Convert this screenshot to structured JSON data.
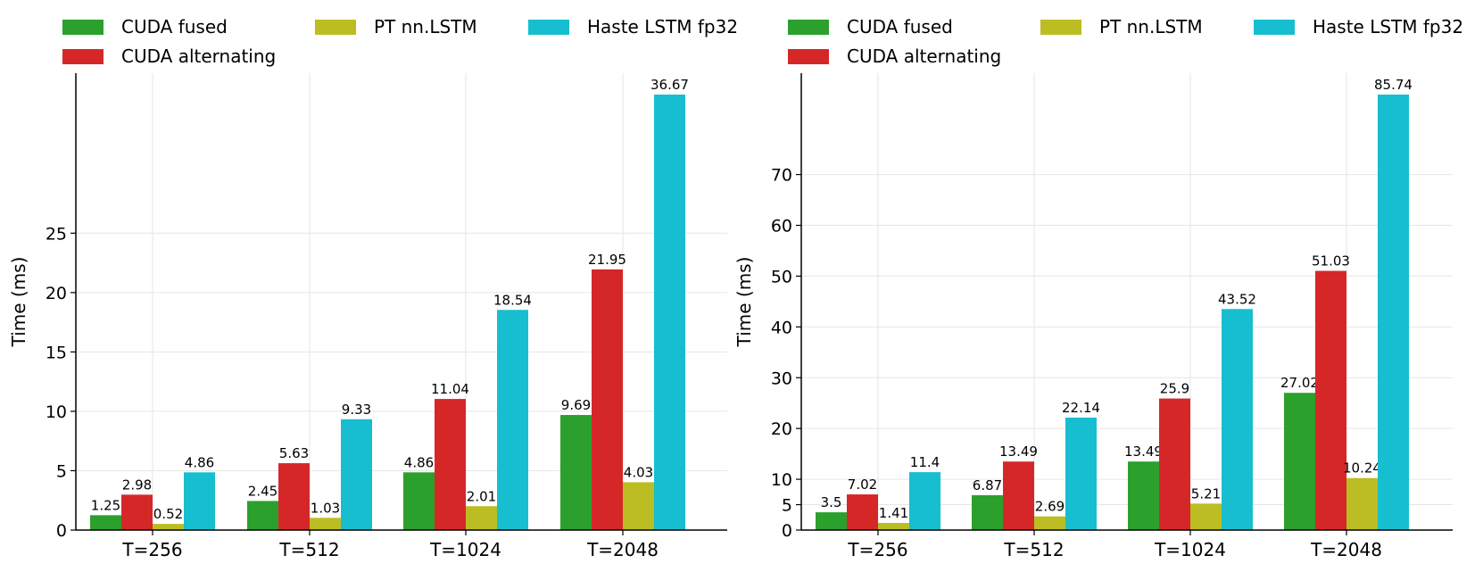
{
  "chart_data": [
    {
      "type": "bar",
      "title": "",
      "xlabel": "",
      "ylabel": "Time (ms)",
      "categories": [
        "T=256",
        "T=512",
        "T=1024",
        "T=2048"
      ],
      "yticks": [
        0,
        5,
        10,
        15,
        20,
        25
      ],
      "ylim": [
        0,
        38.5
      ],
      "grid": true,
      "legend_position": "top",
      "series": [
        {
          "name": "CUDA fused",
          "color": "#2ca02c",
          "values": [
            1.25,
            2.45,
            4.86,
            9.69
          ],
          "labels": [
            "1.25",
            "2.45",
            "4.86",
            "9.69"
          ]
        },
        {
          "name": "CUDA alternating",
          "color": "#d62728",
          "values": [
            2.98,
            5.63,
            11.04,
            21.95
          ],
          "labels": [
            "2.98",
            "5.63",
            "11.04",
            "21.95"
          ]
        },
        {
          "name": "PT nn.LSTM",
          "color": "#bcbd22",
          "values": [
            0.52,
            1.03,
            2.01,
            4.03
          ],
          "labels": [
            "0.52",
            "1.03",
            "2.01",
            "4.03"
          ]
        },
        {
          "name": "Haste LSTM fp32",
          "color": "#17becf",
          "values": [
            4.86,
            9.33,
            18.54,
            36.67
          ],
          "labels": [
            "4.86",
            "9.33",
            "18.54",
            "36.67"
          ]
        }
      ]
    },
    {
      "type": "bar",
      "title": "",
      "xlabel": "",
      "ylabel": "Time (ms)",
      "categories": [
        "T=256",
        "T=512",
        "T=1024",
        "T=2048"
      ],
      "yticks": [
        0,
        5,
        10,
        20,
        30,
        40,
        50,
        60,
        70
      ],
      "ylim": [
        0,
        90
      ],
      "grid": true,
      "legend_position": "top",
      "series": [
        {
          "name": "CUDA fused",
          "color": "#2ca02c",
          "values": [
            3.5,
            6.87,
            13.49,
            27.02
          ],
          "labels": [
            "3.5",
            "6.87",
            "13.49",
            "27.02"
          ]
        },
        {
          "name": "CUDA alternating",
          "color": "#d62728",
          "values": [
            7.02,
            13.49,
            25.9,
            51.03
          ],
          "labels": [
            "7.02",
            "13.49",
            "25.9",
            "51.03"
          ]
        },
        {
          "name": "PT nn.LSTM",
          "color": "#bcbd22",
          "values": [
            1.41,
            2.69,
            5.21,
            10.24
          ],
          "labels": [
            "1.41",
            "2.69",
            "5.21",
            "10.24"
          ]
        },
        {
          "name": "Haste LSTM fp32",
          "color": "#17becf",
          "values": [
            11.4,
            22.14,
            43.52,
            85.74
          ],
          "labels": [
            "11.4",
            "22.14",
            "43.52",
            "85.74"
          ]
        }
      ]
    }
  ]
}
